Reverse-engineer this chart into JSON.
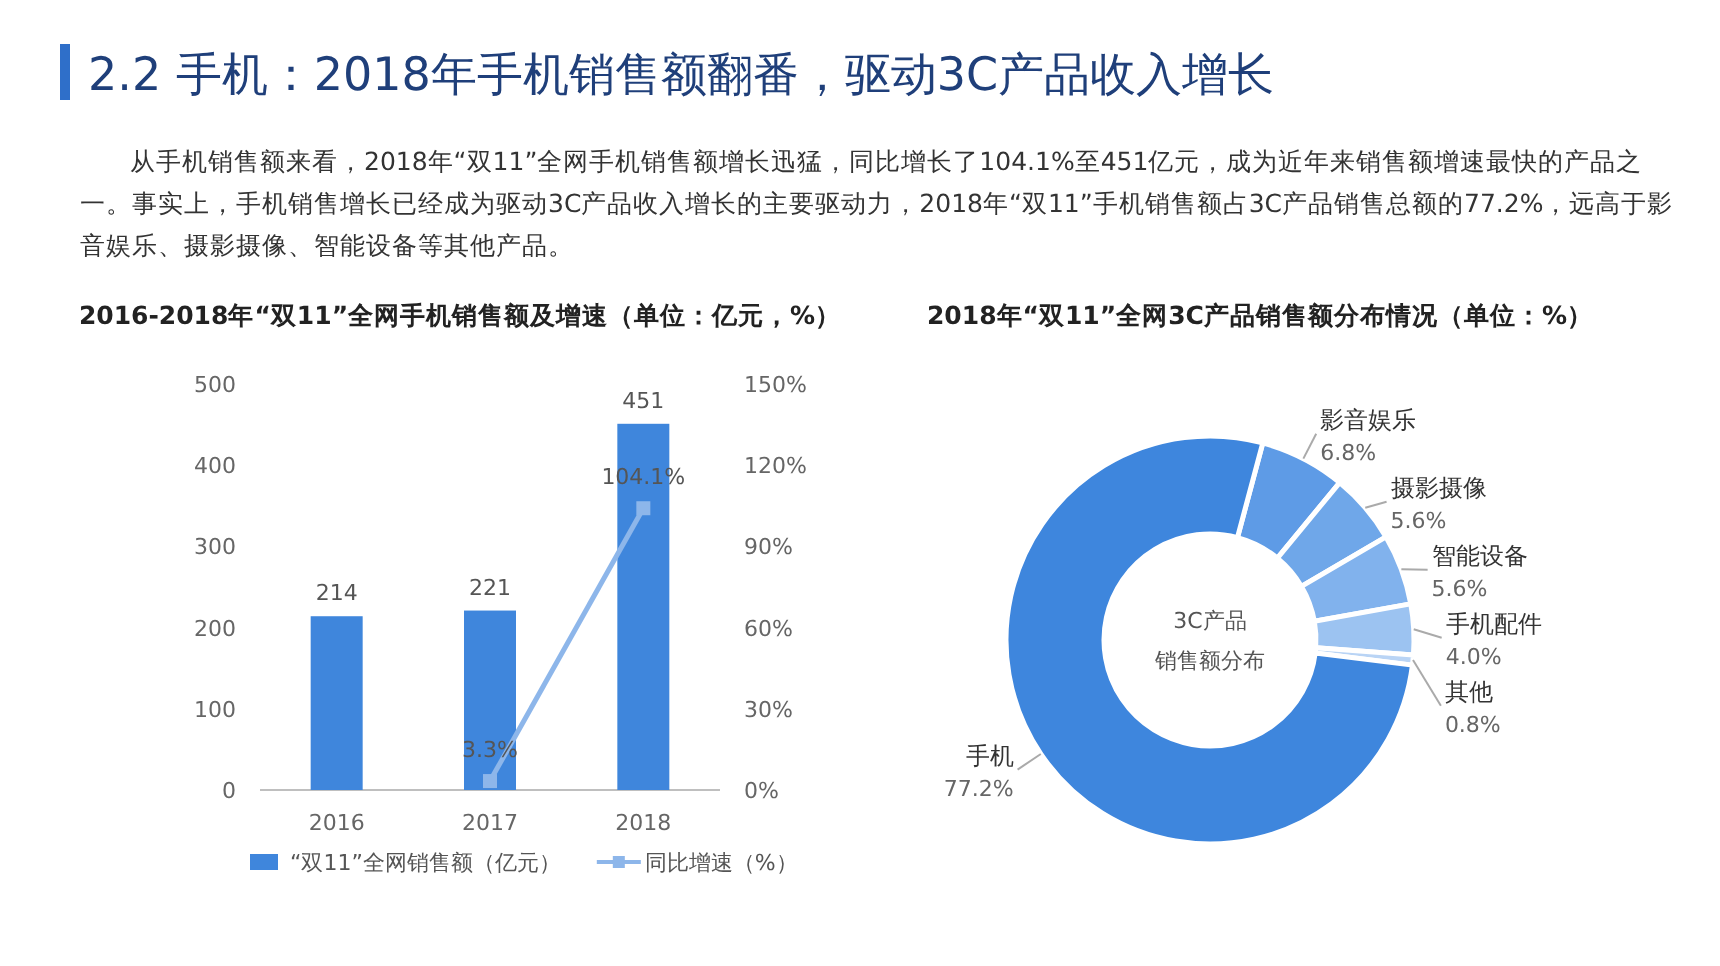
{
  "chart_data": [
    {
      "type": "other",
      "title": "2.2 手机：2018年手机销售额翻番，驱动3C产品收入增长",
      "annotations": [
        "从手机销售额来看，2018年“双11”全网手机销售额增长迅猛，同比增长了104.1%至451亿元，成为近年来销售额增速最快的产品之一。事实上，手机销售增长已经成为驱动3C产品收入增长的主要驱动力，2018年“双11”手机销售额占3C产品销售总额的77.2%，远高于影音娱乐、摄影摄像、智能设备等其他产品。"
      ]
    },
    {
      "type": "bar",
      "title": "2016-2018年“双11”全网手机销售额及增速（单位：亿元，%）",
      "categories": [
        "2016",
        "2017",
        "2018"
      ],
      "series": [
        {
          "name": "“双11”全网销售额（亿元）",
          "color": "#3f86dc",
          "values": [
            214,
            221,
            451
          ],
          "value_labels": [
            "214",
            "221",
            "451"
          ]
        },
        {
          "name": "同比增速（%）",
          "type": "line",
          "axis": "y2",
          "marker": "square",
          "color": "#8db6ea",
          "values": [
            null,
            3.3,
            104.1
          ],
          "value_labels": [
            null,
            "3.3%",
            "104.1%"
          ]
        }
      ],
      "ylim": [
        0,
        500
      ],
      "yticks": [
        0,
        100,
        200,
        300,
        400,
        500
      ],
      "y2lim": [
        0,
        150
      ],
      "y2ticks": [
        {
          "value": 0,
          "label": "0%"
        },
        {
          "value": 30,
          "label": "30%"
        },
        {
          "value": 60,
          "label": "60%"
        },
        {
          "value": 90,
          "label": "90%"
        },
        {
          "value": 120,
          "label": "120%"
        },
        {
          "value": 150,
          "label": "150%"
        }
      ],
      "legend": "bottom",
      "grid": false
    },
    {
      "type": "donut",
      "title": "2018年“双11”全网3C产品销售额分布情况（单位：%）",
      "categories": [
        "影音娱乐",
        "摄影摄像",
        "智能设备",
        "手机配件",
        "其他",
        "手机"
      ],
      "values": [
        6.8,
        5.6,
        5.6,
        4.0,
        0.8,
        77.2
      ],
      "value_labels": [
        "6.8%",
        "5.6%",
        "5.6%",
        "4.0%",
        "0.8%",
        "77.2%"
      ],
      "colors": [
        "#5e9be6",
        "#6fa7e9",
        "#81b2ed",
        "#9cc3f1",
        "#b9d4f5",
        "#3e86dd"
      ],
      "annotations": [
        "3C产品",
        "销售额分布"
      ]
    }
  ]
}
